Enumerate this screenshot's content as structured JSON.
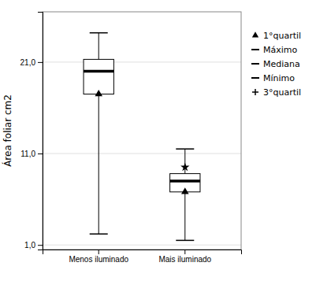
{
  "chart_data": {
    "type": "box",
    "ylabel": "Área foliar cm2",
    "categories": [
      "Menos iluminado",
      "Mais iluminado"
    ],
    "boxes": [
      {
        "q1": 17.5,
        "q3": 21.3,
        "median": 20.0,
        "maximum": 24.2,
        "minimum": 2.2
      },
      {
        "q1": 6.8,
        "q3": 8.8,
        "median": 8.0,
        "maximum": 11.5,
        "minimum": 1.5,
        "extra_point": 9.5
      }
    ],
    "ylim": [
      0.5,
      26.5
    ],
    "yticks": [
      {
        "value": 1.0,
        "label": "1,0"
      },
      {
        "value": 11.0,
        "label": "11,0"
      },
      {
        "value": 21.0,
        "label": "21,0"
      }
    ],
    "grid": true,
    "color": "#000000",
    "legend": "upper right",
    "legend_entries": [
      {
        "name": "1°quartil",
        "marker": "triangle"
      },
      {
        "name": "Máximo",
        "marker": "hline"
      },
      {
        "name": "Mediana",
        "marker": "hline"
      },
      {
        "name": "Mínimo",
        "marker": "hline"
      },
      {
        "name": "3°quartil",
        "marker": "plus"
      }
    ]
  }
}
